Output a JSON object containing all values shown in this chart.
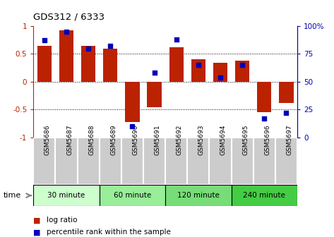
{
  "title": "GDS312 / 6333",
  "samples": [
    "GSM5686",
    "GSM5687",
    "GSM5688",
    "GSM5689",
    "GSM5690",
    "GSM5691",
    "GSM5692",
    "GSM5693",
    "GSM5694",
    "GSM5695",
    "GSM5696",
    "GSM5697"
  ],
  "log_ratio": [
    0.65,
    0.92,
    0.65,
    0.6,
    -0.72,
    -0.46,
    0.62,
    0.4,
    0.34,
    0.38,
    -0.55,
    -0.38
  ],
  "percentile_pct": [
    87,
    95,
    80,
    82,
    10,
    58,
    88,
    65,
    54,
    65,
    17,
    22
  ],
  "groups": [
    {
      "label": "30 minute",
      "start": 0,
      "end": 2,
      "color": "#ccffcc"
    },
    {
      "label": "60 minute",
      "start": 3,
      "end": 5,
      "color": "#99ee99"
    },
    {
      "label": "120 minute",
      "start": 6,
      "end": 8,
      "color": "#77dd77"
    },
    {
      "label": "240 minute",
      "start": 9,
      "end": 11,
      "color": "#44cc44"
    }
  ],
  "bar_color": "#bb2200",
  "dot_color": "#0000bb",
  "ylim_left": [
    -1.0,
    1.0
  ],
  "yticks_left": [
    -1,
    -0.5,
    0,
    0.5,
    1
  ],
  "ylim_right": [
    0,
    100
  ],
  "yticks_right": [
    0,
    25,
    50,
    75,
    100
  ],
  "hlines": [
    -0.5,
    0,
    0.5
  ],
  "bar_width": 0.65,
  "bg_color": "#ffffff",
  "sample_bg_color": "#cccccc",
  "sample_border_color": "#ffffff",
  "legend_log": "log ratio",
  "legend_pct": "percentile rank within the sample",
  "time_label": "time"
}
